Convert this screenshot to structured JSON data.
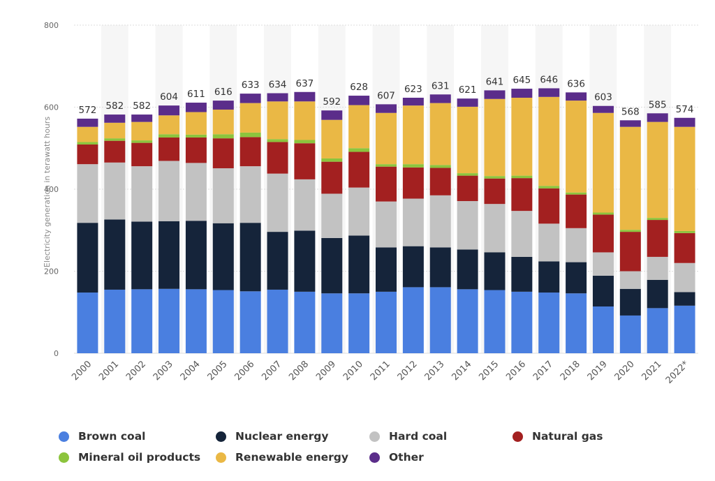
{
  "chart_data": {
    "type": "bar",
    "stacked": true,
    "title": "",
    "xlabel": "",
    "ylabel": "Electricity generation in terawatt hours",
    "ylim": [
      0,
      800
    ],
    "yticks": [
      0,
      200,
      400,
      600,
      800
    ],
    "grid": true,
    "legend_position": "bottom",
    "categories": [
      "2000",
      "2001",
      "2002",
      "2003",
      "2004",
      "2005",
      "2006",
      "2007",
      "2008",
      "2009",
      "2010",
      "2011",
      "2012",
      "2013",
      "2014",
      "2015",
      "2016",
      "2017",
      "2018",
      "2019",
      "2020",
      "2021",
      "2022*"
    ],
    "totals": [
      "572",
      "582",
      "582",
      "604",
      "611",
      "616",
      "633",
      "634",
      "637",
      "592",
      "628",
      "607",
      "623",
      "631",
      "621",
      "641",
      "645",
      "646",
      "636",
      "603",
      "568",
      "585",
      "574"
    ],
    "series": [
      {
        "name": "Brown coal",
        "color": "#4a7fe0",
        "values": [
          148,
          155,
          156,
          157,
          156,
          154,
          151,
          155,
          150,
          146,
          146,
          150,
          161,
          161,
          156,
          154,
          150,
          148,
          146,
          114,
          92,
          110,
          116
        ]
      },
      {
        "name": "Nuclear energy",
        "color": "#15243a",
        "values": [
          170,
          171,
          165,
          165,
          167,
          163,
          167,
          141,
          149,
          135,
          141,
          108,
          100,
          97,
          97,
          92,
          85,
          76,
          76,
          75,
          65,
          69,
          33
        ]
      },
      {
        "name": "Hard coal",
        "color": "#c2c2c2",
        "values": [
          143,
          139,
          135,
          147,
          141,
          134,
          138,
          142,
          125,
          108,
          117,
          112,
          116,
          127,
          118,
          118,
          112,
          92,
          83,
          57,
          43,
          56,
          71
        ]
      },
      {
        "name": "Natural gas",
        "color": "#a32020",
        "values": [
          48,
          53,
          57,
          57,
          62,
          73,
          71,
          77,
          88,
          78,
          87,
          85,
          76,
          67,
          62,
          62,
          80,
          86,
          82,
          92,
          96,
          90,
          73
        ]
      },
      {
        "name": "Mineral oil products",
        "color": "#8cc43d",
        "values": [
          6,
          6,
          6,
          8,
          7,
          10,
          11,
          7,
          8,
          8,
          9,
          6,
          8,
          7,
          6,
          6,
          6,
          6,
          5,
          5,
          5,
          5,
          5
        ]
      },
      {
        "name": "Renewable energy",
        "color": "#eab845",
        "values": [
          37,
          38,
          45,
          46,
          55,
          60,
          72,
          92,
          94,
          94,
          105,
          125,
          143,
          151,
          162,
          188,
          190,
          217,
          224,
          243,
          251,
          234,
          254
        ]
      },
      {
        "name": "Other",
        "color": "#5b2d8a",
        "values": [
          20,
          20,
          18,
          24,
          23,
          22,
          23,
          20,
          23,
          23,
          23,
          21,
          19,
          21,
          20,
          21,
          22,
          21,
          20,
          17,
          16,
          21,
          22
        ]
      }
    ]
  }
}
